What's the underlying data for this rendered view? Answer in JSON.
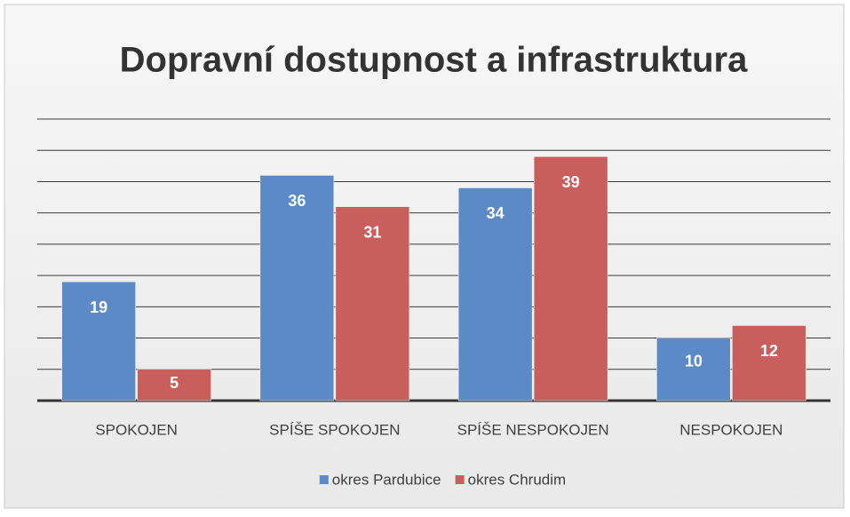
{
  "chart_data": {
    "type": "bar",
    "title": "Dopravní dostupnost a infrastruktura",
    "categories": [
      "SPOKOJEN",
      "SPÍŠE SPOKOJEN",
      "SPÍŠE NESPOKOJEN",
      "NESPOKOJEN"
    ],
    "series": [
      {
        "name": "okres Pardubice",
        "color": "#5b8ac6",
        "values": [
          19,
          36,
          34,
          10
        ]
      },
      {
        "name": "okres Chrudim",
        "color": "#c95f5c",
        "values": [
          5,
          31,
          39,
          12
        ]
      }
    ],
    "ylim": [
      0,
      45
    ],
    "yticks": [
      0,
      5,
      10,
      15,
      20,
      25,
      30,
      35,
      40,
      45
    ],
    "grid": true,
    "legend": "bottom"
  }
}
